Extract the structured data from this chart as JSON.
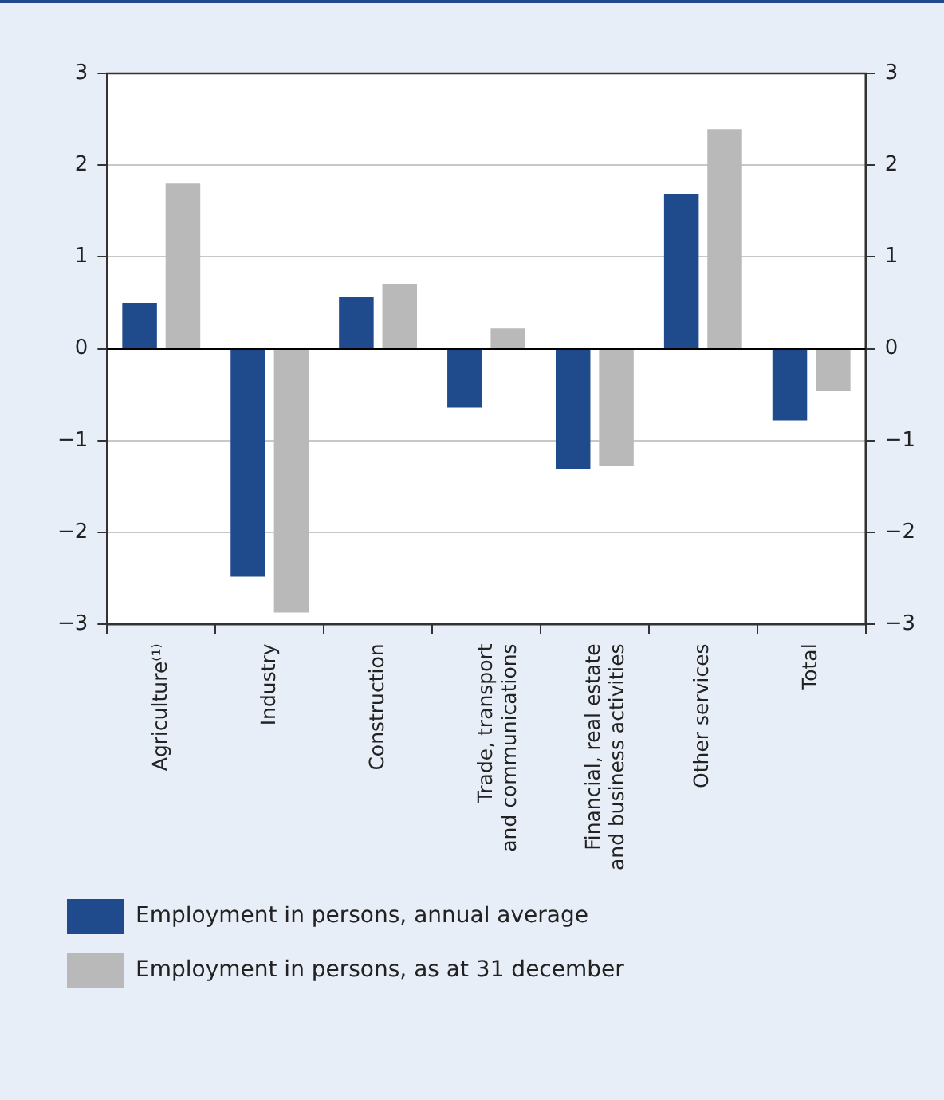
{
  "chart_data": {
    "type": "bar",
    "categories": [
      "Agriculture⁽¹⁾",
      "Industry",
      "Construction",
      "Trade, transport\nand communications",
      "Financial, real estate\nand business activities",
      "Other services",
      "Total"
    ],
    "series": [
      {
        "name": "Employment in persons, annual average",
        "color": "#1f4a8c",
        "values": [
          0.5,
          -2.48,
          0.57,
          -0.64,
          -1.31,
          1.69,
          -0.78
        ]
      },
      {
        "name": "Employment in persons, as at 31 december",
        "color": "#b9b9b9",
        "values": [
          1.8,
          -2.87,
          0.71,
          0.22,
          -1.27,
          2.39,
          -0.46
        ]
      }
    ],
    "ylim": [
      -3,
      3
    ],
    "yticks": [
      -3,
      -2,
      -1,
      0,
      1,
      2,
      3
    ],
    "y2lim": [
      -3,
      3
    ],
    "y2ticks": [
      -3,
      -2,
      -1,
      0,
      1,
      2,
      3
    ],
    "grid": "y",
    "legend": "bottom"
  }
}
